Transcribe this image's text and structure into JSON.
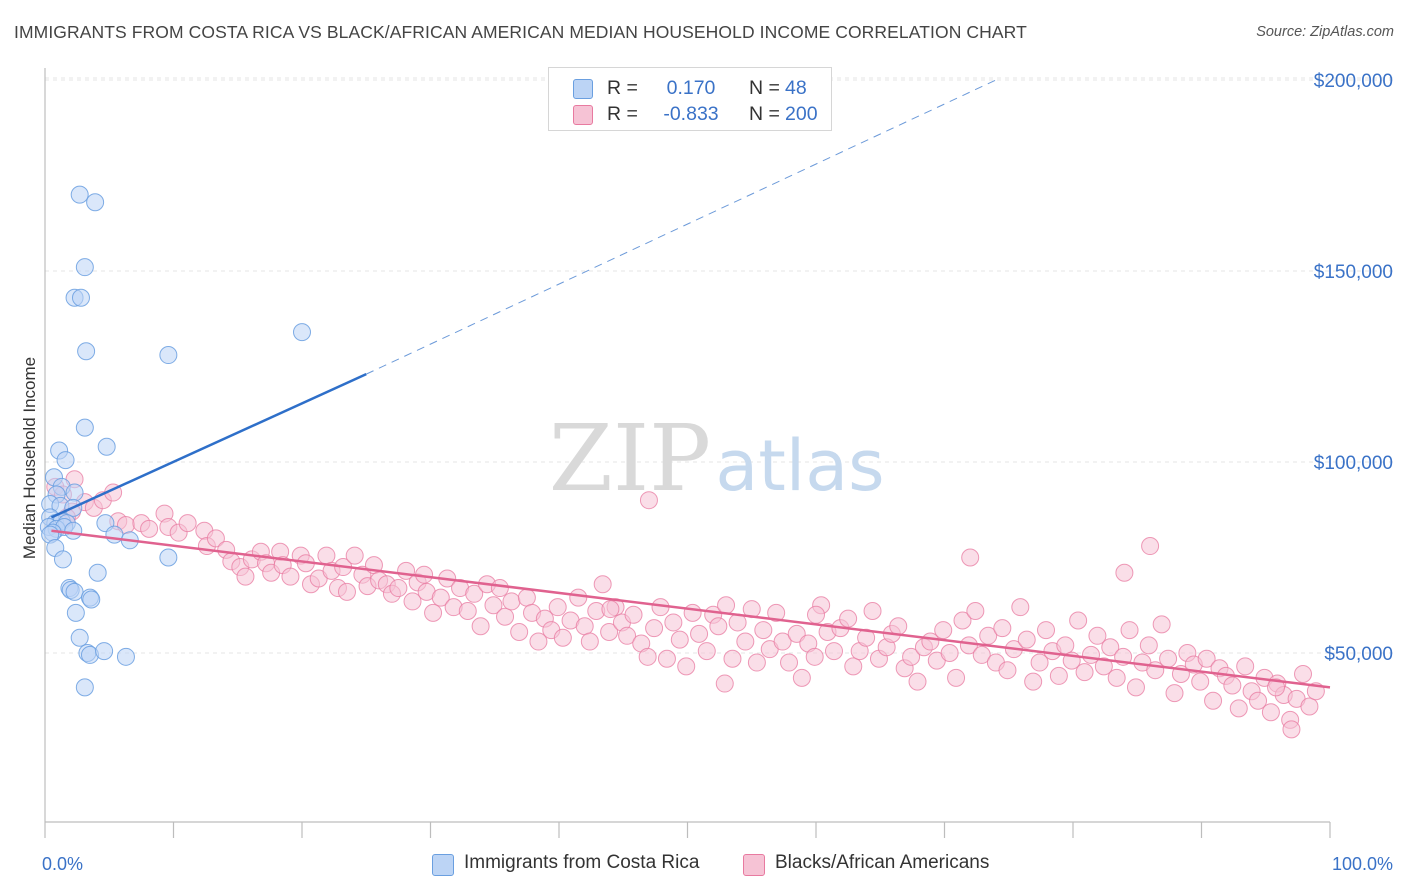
{
  "header": {
    "title": "IMMIGRANTS FROM COSTA RICA VS BLACK/AFRICAN AMERICAN MEDIAN HOUSEHOLD INCOME CORRELATION CHART",
    "source": "Source: ZipAtlas.com"
  },
  "colors": {
    "blue": "#6a9fe0",
    "blue_fill": "#bcd4f5",
    "blue_line": "#2e6fc9",
    "pink": "#e87aa0",
    "pink_fill": "#f6c3d5",
    "pink_line": "#e0628f",
    "axis_text": "#3a72c7"
  },
  "watermark": {
    "zip": "ZIP",
    "atlas": "atlas"
  },
  "legend": {
    "rows": [
      {
        "r_label": "R =",
        "r_value": "0.170",
        "n_label": "N =",
        "n_value": "48"
      },
      {
        "r_label": "R =",
        "r_value": "-0.833",
        "n_label": "N =",
        "n_value": "200"
      }
    ]
  },
  "bottom_legend": [
    "Immigrants from Costa Rica",
    "Blacks/African Americans"
  ],
  "chart_data": {
    "type": "scatter",
    "title": "IMMIGRANTS FROM COSTA RICA VS BLACK/AFRICAN AMERICAN MEDIAN HOUSEHOLD INCOME CORRELATION CHART",
    "xlabel": "",
    "ylabel": "Median Household Income",
    "xlim": [
      0,
      100
    ],
    "ylim": [
      0,
      210000
    ],
    "x_ticks_labels": [
      "0.0%",
      "100.0%"
    ],
    "y_ticks": [
      50000,
      100000,
      150000,
      200000
    ],
    "y_tick_labels": [
      "$50,000",
      "$100,000",
      "$150,000",
      "$200,000"
    ],
    "grid": "horizontal dashed",
    "legend_position": "top-center",
    "series": [
      {
        "name": "Immigrants from Costa Rica",
        "r": 0.17,
        "n": 48,
        "trend": {
          "x": [
            0.5,
            25
          ],
          "y": [
            85500,
            123000
          ],
          "extended_to": [
            74,
            200000
          ]
        },
        "points": [
          [
            2.7,
            170000
          ],
          [
            3.9,
            168000
          ],
          [
            3.1,
            151000
          ],
          [
            2.3,
            143000
          ],
          [
            2.8,
            143000
          ],
          [
            3.2,
            129000
          ],
          [
            9.6,
            128000
          ],
          [
            20,
            134000
          ],
          [
            3.1,
            109000
          ],
          [
            1.1,
            103000
          ],
          [
            4.8,
            104000
          ],
          [
            1.6,
            100500
          ],
          [
            0.7,
            96000
          ],
          [
            1.3,
            93500
          ],
          [
            2.3,
            92000
          ],
          [
            0.9,
            91500
          ],
          [
            0.4,
            89000
          ],
          [
            1.2,
            88500
          ],
          [
            2.2,
            88000
          ],
          [
            0.4,
            85500
          ],
          [
            0.8,
            84000
          ],
          [
            1.3,
            84500
          ],
          [
            1.7,
            84000
          ],
          [
            4.7,
            84000
          ],
          [
            0.3,
            83000
          ],
          [
            0.9,
            82500
          ],
          [
            1.5,
            83000
          ],
          [
            2.2,
            82000
          ],
          [
            0.6,
            81500
          ],
          [
            5.4,
            81000
          ],
          [
            0.4,
            81000
          ],
          [
            6.6,
            79500
          ],
          [
            0.8,
            77500
          ],
          [
            1.4,
            74500
          ],
          [
            9.6,
            75000
          ],
          [
            4.1,
            71000
          ],
          [
            1.9,
            67000
          ],
          [
            2.0,
            66500
          ],
          [
            2.3,
            66000
          ],
          [
            3.5,
            64500
          ],
          [
            3.6,
            64000
          ],
          [
            2.4,
            60500
          ],
          [
            2.7,
            54000
          ],
          [
            3.3,
            50000
          ],
          [
            3.5,
            49500
          ],
          [
            4.6,
            50500
          ],
          [
            6.3,
            49000
          ],
          [
            3.1,
            41000
          ]
        ]
      },
      {
        "name": "Blacks/African Americans",
        "r": -0.833,
        "n": 200,
        "trend": {
          "x": [
            0.5,
            100
          ],
          "y": [
            82000,
            41000
          ]
        },
        "points": [
          [
            0.8,
            93500
          ],
          [
            1.4,
            91500
          ],
          [
            2.3,
            95500
          ],
          [
            3.1,
            89500
          ],
          [
            3.8,
            88000
          ],
          [
            4.5,
            90000
          ],
          [
            5.3,
            92000
          ],
          [
            2.1,
            87000
          ],
          [
            1.7,
            85500
          ],
          [
            5.7,
            84500
          ],
          [
            6.3,
            83500
          ],
          [
            7.5,
            84000
          ],
          [
            8.1,
            82500
          ],
          [
            9.3,
            86500
          ],
          [
            9.6,
            83000
          ],
          [
            10.4,
            81500
          ],
          [
            11.1,
            84000
          ],
          [
            12.4,
            82000
          ],
          [
            12.6,
            78000
          ],
          [
            13.3,
            80000
          ],
          [
            14.1,
            77000
          ],
          [
            14.5,
            74000
          ],
          [
            15.2,
            72500
          ],
          [
            15.6,
            70000
          ],
          [
            16.1,
            74500
          ],
          [
            16.8,
            76500
          ],
          [
            17.2,
            73500
          ],
          [
            17.6,
            71000
          ],
          [
            18.3,
            76500
          ],
          [
            18.5,
            73000
          ],
          [
            19.1,
            70000
          ],
          [
            19.9,
            75500
          ],
          [
            20.3,
            73500
          ],
          [
            20.7,
            68000
          ],
          [
            21.3,
            69500
          ],
          [
            21.9,
            75500
          ],
          [
            22.3,
            71500
          ],
          [
            22.8,
            67000
          ],
          [
            23.2,
            72500
          ],
          [
            23.5,
            66000
          ],
          [
            24.1,
            75500
          ],
          [
            24.7,
            70500
          ],
          [
            25.1,
            67500
          ],
          [
            25.6,
            73000
          ],
          [
            26.0,
            69000
          ],
          [
            26.6,
            68000
          ],
          [
            27.0,
            65500
          ],
          [
            27.5,
            67000
          ],
          [
            28.1,
            71500
          ],
          [
            28.6,
            63500
          ],
          [
            29.0,
            68500
          ],
          [
            29.7,
            66000
          ],
          [
            30.2,
            60500
          ],
          [
            30.8,
            64500
          ],
          [
            31.3,
            69500
          ],
          [
            31.8,
            62000
          ],
          [
            32.3,
            67000
          ],
          [
            32.9,
            61000
          ],
          [
            33.4,
            65500
          ],
          [
            33.9,
            57000
          ],
          [
            34.4,
            68000
          ],
          [
            34.9,
            62500
          ],
          [
            35.4,
            67000
          ],
          [
            35.8,
            59500
          ],
          [
            36.3,
            63500
          ],
          [
            36.9,
            55500
          ],
          [
            37.5,
            64500
          ],
          [
            37.9,
            60500
          ],
          [
            38.4,
            53000
          ],
          [
            38.9,
            59000
          ],
          [
            39.4,
            56000
          ],
          [
            39.9,
            62000
          ],
          [
            40.3,
            54000
          ],
          [
            40.9,
            58500
          ],
          [
            41.5,
            64500
          ],
          [
            42.0,
            57000
          ],
          [
            42.4,
            53000
          ],
          [
            42.9,
            61000
          ],
          [
            43.4,
            68000
          ],
          [
            43.9,
            55500
          ],
          [
            44.4,
            62000
          ],
          [
            44.9,
            58000
          ],
          [
            45.3,
            54500
          ],
          [
            45.8,
            60000
          ],
          [
            46.4,
            52500
          ],
          [
            46.9,
            49000
          ],
          [
            47.4,
            56500
          ],
          [
            47.9,
            62000
          ],
          [
            48.4,
            48500
          ],
          [
            48.9,
            58000
          ],
          [
            49.4,
            53500
          ],
          [
            49.9,
            46500
          ],
          [
            50.4,
            60500
          ],
          [
            50.9,
            55000
          ],
          [
            51.5,
            50500
          ],
          [
            52.0,
            60000
          ],
          [
            52.4,
            57000
          ],
          [
            52.9,
            42000
          ],
          [
            53.5,
            48500
          ],
          [
            53.9,
            58000
          ],
          [
            54.5,
            53000
          ],
          [
            55.0,
            61500
          ],
          [
            55.4,
            47500
          ],
          [
            55.9,
            56000
          ],
          [
            56.4,
            51000
          ],
          [
            56.9,
            60500
          ],
          [
            57.4,
            53000
          ],
          [
            57.9,
            47500
          ],
          [
            58.5,
            55000
          ],
          [
            58.9,
            43500
          ],
          [
            59.4,
            52500
          ],
          [
            59.9,
            49000
          ],
          [
            60.4,
            62500
          ],
          [
            60.9,
            55500
          ],
          [
            61.4,
            50500
          ],
          [
            61.9,
            56500
          ],
          [
            62.5,
            59000
          ],
          [
            62.9,
            46500
          ],
          [
            63.4,
            50500
          ],
          [
            63.9,
            54000
          ],
          [
            64.4,
            61000
          ],
          [
            64.9,
            48500
          ],
          [
            65.5,
            51500
          ],
          [
            65.9,
            55000
          ],
          [
            66.4,
            57000
          ],
          [
            66.9,
            46000
          ],
          [
            67.4,
            49000
          ],
          [
            67.9,
            42500
          ],
          [
            68.4,
            51500
          ],
          [
            68.9,
            53000
          ],
          [
            69.4,
            48000
          ],
          [
            69.9,
            56000
          ],
          [
            70.4,
            50000
          ],
          [
            70.9,
            43500
          ],
          [
            71.4,
            58500
          ],
          [
            71.9,
            52000
          ],
          [
            72.4,
            61000
          ],
          [
            72.9,
            49500
          ],
          [
            73.4,
            54500
          ],
          [
            74.0,
            47500
          ],
          [
            74.5,
            56500
          ],
          [
            74.9,
            45500
          ],
          [
            75.4,
            51000
          ],
          [
            75.9,
            62000
          ],
          [
            76.4,
            53500
          ],
          [
            76.9,
            42500
          ],
          [
            77.4,
            47500
          ],
          [
            77.9,
            56000
          ],
          [
            78.4,
            50500
          ],
          [
            78.9,
            44000
          ],
          [
            79.4,
            52000
          ],
          [
            79.9,
            48000
          ],
          [
            80.4,
            58500
          ],
          [
            80.9,
            45000
          ],
          [
            81.4,
            49500
          ],
          [
            81.9,
            54500
          ],
          [
            82.4,
            46500
          ],
          [
            82.9,
            51500
          ],
          [
            83.4,
            43500
          ],
          [
            83.9,
            49000
          ],
          [
            84.4,
            56000
          ],
          [
            84.9,
            41000
          ],
          [
            85.4,
            47500
          ],
          [
            85.9,
            52000
          ],
          [
            86.4,
            45500
          ],
          [
            86.9,
            57500
          ],
          [
            87.4,
            48500
          ],
          [
            87.9,
            39500
          ],
          [
            88.4,
            44500
          ],
          [
            88.9,
            50000
          ],
          [
            89.4,
            47000
          ],
          [
            89.9,
            42500
          ],
          [
            90.4,
            48500
          ],
          [
            90.9,
            37500
          ],
          [
            91.4,
            46000
          ],
          [
            91.9,
            44000
          ],
          [
            92.4,
            41500
          ],
          [
            92.9,
            35500
          ],
          [
            93.4,
            46500
          ],
          [
            93.9,
            40000
          ],
          [
            94.4,
            37500
          ],
          [
            94.9,
            43500
          ],
          [
            95.4,
            34500
          ],
          [
            95.9,
            42000
          ],
          [
            96.4,
            39000
          ],
          [
            96.9,
            32500
          ],
          [
            97.4,
            38000
          ],
          [
            97.9,
            44500
          ],
          [
            98.4,
            36000
          ],
          [
            98.9,
            40000
          ],
          [
            29.5,
            70500
          ],
          [
            44.0,
            61500
          ],
          [
            53.0,
            62500
          ],
          [
            60.0,
            60000
          ],
          [
            72.0,
            75000
          ],
          [
            84.0,
            71000
          ],
          [
            86.0,
            78000
          ],
          [
            47.0,
            90000
          ],
          [
            95.8,
            41000
          ],
          [
            97.0,
            30000
          ]
        ]
      }
    ]
  }
}
